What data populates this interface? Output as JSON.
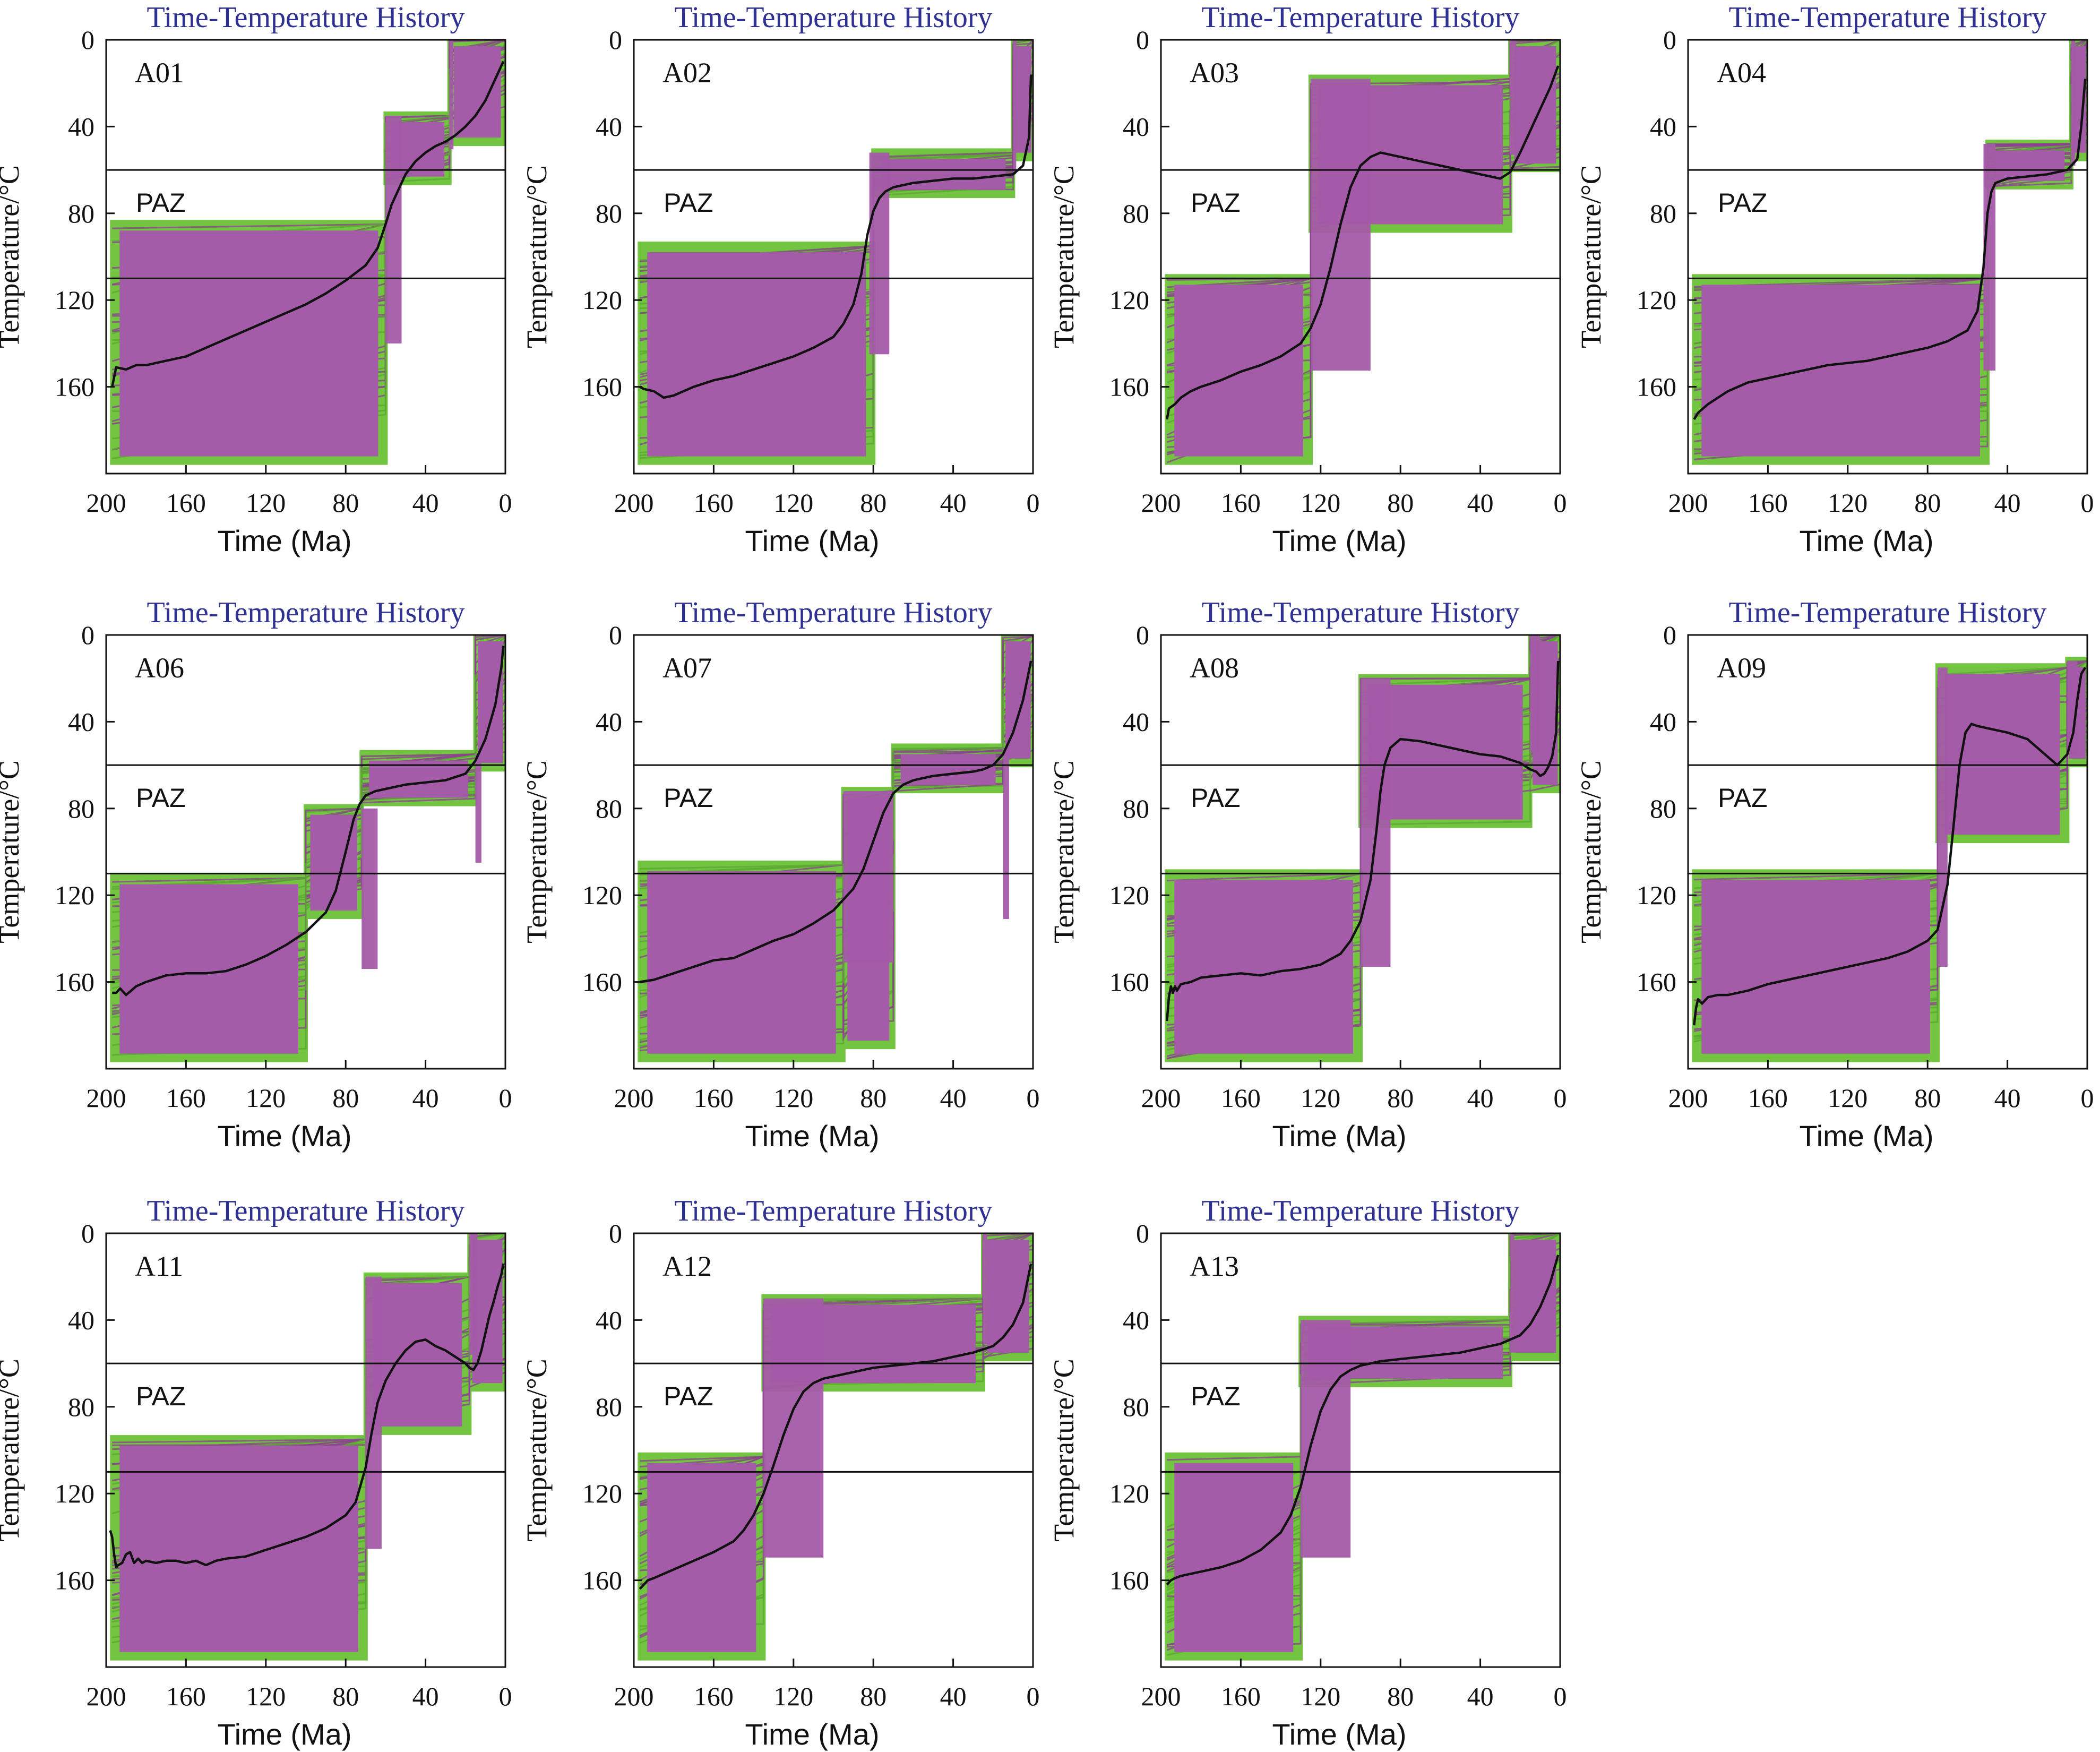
{
  "figure": {
    "colors": {
      "green": "#72c441",
      "purple": "#a45ba8",
      "mean": "#111111",
      "title": "#2e3192"
    },
    "paz_label": "PAZ",
    "paz_bounds": [
      60,
      110
    ]
  },
  "chart_data": [
    {
      "type": "line",
      "title": "Time-Temperature History",
      "sample": "A01",
      "xlabel": "Time (Ma)",
      "ylabel": "Temperature/°C",
      "xlim": [
        200,
        0
      ],
      "ylim": [
        0,
        200
      ],
      "xticks": [
        "200",
        "160",
        "120",
        "80",
        "40",
        "0"
      ],
      "yticks": [
        "0",
        "40",
        "80",
        "120",
        "160"
      ],
      "series": [
        {
          "x": [
            197,
            195,
            190,
            185,
            180,
            170,
            160,
            150,
            140,
            130,
            120,
            110,
            100,
            90,
            80,
            70,
            64,
            60,
            57,
            53,
            50,
            45,
            40,
            35,
            30,
            25,
            20,
            15,
            10,
            5,
            1
          ],
          "y": [
            160,
            151,
            152,
            150,
            150,
            148,
            146,
            142,
            138,
            134,
            130,
            126,
            122,
            117,
            111,
            104,
            96,
            85,
            76,
            68,
            62,
            56,
            52,
            49,
            47,
            44,
            40,
            35,
            28,
            18,
            10
          ]
        }
      ]
    },
    {
      "type": "line",
      "title": "Time-Temperature History",
      "sample": "A02",
      "xlabel": "Time (Ma)",
      "ylabel": "Temperature/°C",
      "xlim": [
        200,
        0
      ],
      "ylim": [
        0,
        200
      ],
      "xticks": [
        "200",
        "160",
        "120",
        "80",
        "40",
        "0"
      ],
      "yticks": [
        "0",
        "40",
        "80",
        "120",
        "160"
      ],
      "series": [
        {
          "x": [
            197,
            195,
            190,
            185,
            180,
            170,
            160,
            150,
            140,
            130,
            120,
            110,
            100,
            95,
            90,
            86,
            83,
            80,
            77,
            74,
            70,
            60,
            50,
            40,
            30,
            20,
            10,
            5,
            2,
            1
          ],
          "y": [
            160,
            161,
            162,
            165,
            164,
            160,
            157,
            155,
            152,
            149,
            146,
            142,
            137,
            131,
            122,
            108,
            90,
            79,
            73,
            70,
            68,
            66,
            65,
            64,
            64,
            63,
            62,
            58,
            45,
            16
          ]
        }
      ]
    },
    {
      "type": "line",
      "title": "Time-Temperature History",
      "sample": "A03",
      "xlabel": "Time (Ma)",
      "ylabel": "Temperature/°C",
      "xlim": [
        200,
        0
      ],
      "ylim": [
        0,
        200
      ],
      "xticks": [
        "200",
        "160",
        "120",
        "80",
        "40",
        "0"
      ],
      "yticks": [
        "0",
        "40",
        "80",
        "120",
        "160"
      ],
      "series": [
        {
          "x": [
            197,
            196,
            193,
            190,
            185,
            180,
            170,
            160,
            150,
            140,
            130,
            125,
            120,
            115,
            110,
            105,
            100,
            95,
            90,
            80,
            70,
            60,
            50,
            40,
            30,
            25,
            20,
            15,
            10,
            5,
            1
          ],
          "y": [
            175,
            170,
            168,
            165,
            162,
            160,
            157,
            153,
            150,
            146,
            140,
            133,
            122,
            105,
            85,
            68,
            58,
            54,
            52,
            54,
            56,
            58,
            60,
            62,
            64,
            61,
            52,
            42,
            32,
            22,
            12
          ]
        }
      ]
    },
    {
      "type": "line",
      "title": "Time-Temperature History",
      "sample": "A04",
      "xlabel": "Time (Ma)",
      "ylabel": "Temperature/°C",
      "xlim": [
        200,
        0
      ],
      "ylim": [
        0,
        200
      ],
      "xticks": [
        "200",
        "160",
        "120",
        "80",
        "40",
        "0"
      ],
      "yticks": [
        "0",
        "40",
        "80",
        "120",
        "160"
      ],
      "series": [
        {
          "x": [
            197,
            195,
            190,
            185,
            180,
            170,
            160,
            150,
            140,
            130,
            120,
            110,
            100,
            90,
            80,
            70,
            60,
            55,
            52,
            50,
            48,
            46,
            40,
            30,
            20,
            10,
            5,
            3,
            1
          ],
          "y": [
            175,
            172,
            168,
            165,
            162,
            158,
            156,
            154,
            152,
            150,
            149,
            148,
            146,
            144,
            142,
            139,
            134,
            125,
            105,
            80,
            70,
            66,
            64,
            63,
            62,
            60,
            55,
            40,
            18
          ]
        }
      ]
    },
    {
      "type": "line",
      "title": "Time-Temperature History",
      "sample": "A06",
      "xlabel": "Time (Ma)",
      "ylabel": "Temperature/°C",
      "xlim": [
        200,
        0
      ],
      "ylim": [
        0,
        200
      ],
      "xticks": [
        "200",
        "160",
        "120",
        "80",
        "40",
        "0"
      ],
      "yticks": [
        "0",
        "40",
        "80",
        "120",
        "160"
      ],
      "series": [
        {
          "x": [
            197,
            195,
            193,
            190,
            185,
            180,
            170,
            160,
            150,
            140,
            130,
            120,
            110,
            100,
            90,
            85,
            80,
            76,
            73,
            70,
            65,
            60,
            50,
            40,
            30,
            20,
            15,
            10,
            5,
            2,
            1
          ],
          "y": [
            165,
            165,
            163,
            166,
            162,
            160,
            157,
            156,
            156,
            155,
            152,
            148,
            143,
            137,
            128,
            118,
            100,
            85,
            78,
            74,
            72,
            71,
            69,
            68,
            67,
            64,
            58,
            48,
            32,
            15,
            5
          ]
        }
      ]
    },
    {
      "type": "line",
      "title": "Time-Temperature History",
      "sample": "A07",
      "xlabel": "Time (Ma)",
      "ylabel": "Temperature/°C",
      "xlim": [
        200,
        0
      ],
      "ylim": [
        0,
        200
      ],
      "xticks": [
        "200",
        "160",
        "120",
        "80",
        "40",
        "0"
      ],
      "yticks": [
        "0",
        "40",
        "80",
        "120",
        "160"
      ],
      "series": [
        {
          "x": [
            197,
            190,
            180,
            170,
            160,
            150,
            140,
            130,
            120,
            110,
            100,
            90,
            85,
            80,
            75,
            70,
            65,
            60,
            50,
            40,
            30,
            25,
            20,
            15,
            10,
            5,
            1
          ],
          "y": [
            160,
            159,
            156,
            153,
            150,
            149,
            145,
            141,
            138,
            133,
            127,
            117,
            108,
            95,
            82,
            73,
            69,
            67,
            65,
            64,
            63,
            62,
            60,
            55,
            45,
            30,
            12
          ]
        }
      ]
    },
    {
      "type": "line",
      "title": "Time-Temperature History",
      "sample": "A08",
      "xlabel": "Time (Ma)",
      "ylabel": "Temperature/°C",
      "xlim": [
        200,
        0
      ],
      "ylim": [
        0,
        200
      ],
      "xticks": [
        "200",
        "160",
        "120",
        "80",
        "40",
        "0"
      ],
      "yticks": [
        "0",
        "40",
        "80",
        "120",
        "160"
      ],
      "series": [
        {
          "x": [
            197,
            196,
            195,
            194,
            193,
            192,
            190,
            185,
            180,
            170,
            160,
            150,
            140,
            130,
            120,
            110,
            105,
            100,
            95,
            92,
            90,
            88,
            85,
            80,
            70,
            60,
            50,
            40,
            30,
            20,
            15,
            12,
            10,
            8,
            6,
            4,
            2,
            1
          ],
          "y": [
            178,
            167,
            162,
            165,
            162,
            164,
            161,
            160,
            158,
            157,
            156,
            157,
            155,
            154,
            152,
            147,
            141,
            132,
            113,
            90,
            72,
            60,
            52,
            48,
            49,
            51,
            53,
            55,
            56,
            59,
            62,
            63,
            65,
            64,
            61,
            56,
            45,
            12
          ]
        }
      ]
    },
    {
      "type": "line",
      "title": "Time-Temperature History",
      "sample": "A09",
      "xlabel": "Time (Ma)",
      "ylabel": "Temperature/°C",
      "xlim": [
        200,
        0
      ],
      "ylim": [
        0,
        200
      ],
      "xticks": [
        "200",
        "160",
        "120",
        "80",
        "40",
        "0"
      ],
      "yticks": [
        "0",
        "40",
        "80",
        "120",
        "160"
      ],
      "series": [
        {
          "x": [
            197,
            196,
            195,
            193,
            190,
            185,
            180,
            170,
            160,
            150,
            140,
            130,
            120,
            110,
            100,
            90,
            80,
            75,
            70,
            67,
            64,
            61,
            58,
            55,
            50,
            40,
            30,
            25,
            20,
            15,
            10,
            7,
            5,
            3,
            1
          ],
          "y": [
            180,
            172,
            168,
            170,
            167,
            166,
            166,
            164,
            161,
            159,
            157,
            155,
            153,
            151,
            149,
            146,
            141,
            136,
            115,
            88,
            60,
            45,
            41,
            42,
            43,
            45,
            48,
            52,
            56,
            60,
            55,
            45,
            30,
            18,
            15
          ]
        }
      ]
    },
    {
      "type": "line",
      "title": "Time-Temperature History",
      "sample": "A11",
      "xlabel": "Time (Ma)",
      "ylabel": "Temperature/°C",
      "xlim": [
        200,
        0
      ],
      "ylim": [
        0,
        200
      ],
      "xticks": [
        "200",
        "160",
        "120",
        "80",
        "40",
        "0"
      ],
      "yticks": [
        "0",
        "40",
        "80",
        "120",
        "160"
      ],
      "series": [
        {
          "x": [
            198,
            197,
            196,
            195,
            194,
            192,
            190,
            188,
            186,
            184,
            182,
            180,
            175,
            170,
            165,
            160,
            155,
            150,
            145,
            140,
            130,
            120,
            110,
            100,
            90,
            80,
            75,
            70,
            67,
            64,
            60,
            55,
            50,
            45,
            40,
            35,
            30,
            25,
            20,
            18,
            16,
            14,
            12,
            10,
            8,
            6,
            4,
            2,
            1
          ],
          "y": [
            137,
            140,
            148,
            154,
            153,
            152,
            148,
            147,
            152,
            150,
            152,
            151,
            152,
            151,
            151,
            152,
            151,
            153,
            151,
            150,
            149,
            146,
            143,
            140,
            136,
            130,
            124,
            108,
            92,
            78,
            68,
            60,
            54,
            50,
            49,
            52,
            54,
            57,
            60,
            62,
            63,
            60,
            54,
            46,
            38,
            32,
            25,
            19,
            14
          ]
        }
      ]
    },
    {
      "type": "line",
      "title": "Time-Temperature History",
      "sample": "A12",
      "xlabel": "Time (Ma)",
      "ylabel": "Temperature/°C",
      "xlim": [
        200,
        0
      ],
      "ylim": [
        0,
        200
      ],
      "xticks": [
        "200",
        "160",
        "120",
        "80",
        "40",
        "0"
      ],
      "yticks": [
        "0",
        "40",
        "80",
        "120",
        "160"
      ],
      "series": [
        {
          "x": [
            197,
            195,
            193,
            190,
            185,
            180,
            170,
            160,
            150,
            145,
            140,
            135,
            130,
            125,
            120,
            115,
            110,
            105,
            100,
            90,
            80,
            70,
            60,
            50,
            40,
            30,
            20,
            15,
            10,
            5,
            1
          ],
          "y": [
            164,
            162,
            160,
            159,
            157,
            155,
            151,
            147,
            142,
            137,
            130,
            120,
            107,
            93,
            81,
            73,
            69,
            67,
            66,
            64,
            62,
            61,
            60,
            59,
            57,
            55,
            52,
            48,
            42,
            32,
            14
          ]
        }
      ]
    },
    {
      "type": "line",
      "title": "Time-Temperature History",
      "sample": "A13",
      "xlabel": "Time (Ma)",
      "ylabel": "Temperature/°C",
      "xlim": [
        200,
        0
      ],
      "ylim": [
        0,
        200
      ],
      "xticks": [
        "200",
        "160",
        "120",
        "80",
        "40",
        "0"
      ],
      "yticks": [
        "0",
        "40",
        "80",
        "120",
        "160"
      ],
      "series": [
        {
          "x": [
            197,
            195,
            193,
            190,
            185,
            180,
            170,
            160,
            150,
            140,
            135,
            130,
            125,
            120,
            115,
            110,
            105,
            100,
            90,
            80,
            70,
            60,
            50,
            40,
            30,
            20,
            15,
            10,
            5,
            1
          ],
          "y": [
            162,
            160,
            159,
            158,
            157,
            156,
            154,
            151,
            146,
            138,
            130,
            117,
            98,
            82,
            72,
            66,
            63,
            61,
            59,
            58,
            57,
            56,
            55,
            53,
            51,
            47,
            42,
            34,
            23,
            10
          ]
        }
      ]
    }
  ]
}
